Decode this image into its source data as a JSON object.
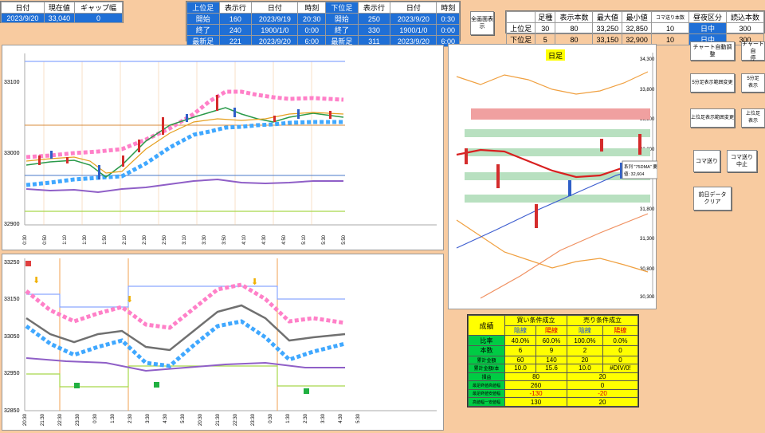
{
  "status": {
    "headers": [
      "日付",
      "現在値",
      "ギャップ幅"
    ],
    "values": [
      "2023/9/20",
      "33,040",
      "0"
    ]
  },
  "session": {
    "headers": [
      "上位足",
      "表示行",
      "日付",
      "時刻",
      "下位足",
      "表示行",
      "日付",
      "時刻"
    ],
    "rows": [
      [
        "開始",
        "160",
        "2023/9/19",
        "20:30",
        "開始",
        "250",
        "2023/9/20",
        "0:30"
      ],
      [
        "終了",
        "240",
        "1900/1/0",
        "0:00",
        "終了",
        "330",
        "1900/1/0",
        "0:00"
      ],
      [
        "最新足",
        "221",
        "2023/9/20",
        "6:00",
        "最新足",
        "311",
        "2023/9/20",
        "6:00"
      ]
    ]
  },
  "fullscreen_button": "全画面表示",
  "bars": {
    "headers": [
      "",
      "足種",
      "表示本数",
      "最大値",
      "最小値",
      "コマ送り本数",
      "昼夜区分",
      "読込本数"
    ],
    "rows": [
      [
        "上位足",
        "30",
        "80",
        "33,250",
        "32,850",
        "10",
        "日中",
        "300"
      ],
      [
        "下位足",
        "5",
        "80",
        "33,150",
        "32,900",
        "10",
        "日中",
        "300"
      ]
    ]
  },
  "buttons": {
    "chart_auto": "チャート自動調整",
    "chart_stop": "チャート自\n停",
    "hi5": "5分足表示範囲変更",
    "hi5b": "5分足\n表示",
    "upper_range": "上位足表示範囲変更",
    "upper_b": "上位足\n表示",
    "step": "コマ送り",
    "step_stop": "コマ送り\n中止",
    "clear": "前日データ\nクリア"
  },
  "chart_top": {
    "yticks": [
      "33100",
      "33000",
      "32900"
    ],
    "xticks": [
      "0:30",
      "0:50",
      "1:10",
      "1:30",
      "1:50",
      "2:10",
      "2:30",
      "2:50",
      "3:10",
      "3:30",
      "3:50",
      "4:10",
      "4:30",
      "4:50",
      "5:10",
      "5:30",
      "5:50"
    ]
  },
  "chart_bottom": {
    "yticks": [
      "33250",
      "33150",
      "33050",
      "32950",
      "32850"
    ],
    "xticks": [
      "20:30",
      "21:30",
      "22:30",
      "23:30",
      "0:30",
      "1:30",
      "2:30",
      "3:30",
      "4:30",
      "5:30",
      "20:30",
      "21:30",
      "22:30",
      "23:30",
      "0:30",
      "1:30",
      "2:30",
      "3:30",
      "4:30",
      "5:30"
    ]
  },
  "daily": {
    "title": "日足",
    "yticks": [
      "34,300",
      "33,800",
      "33,300",
      "32,800",
      "31,800",
      "31,300",
      "30,800",
      "30,300"
    ],
    "tooltip_l1": "系列 \"75DMA\" 要素 \"1\"",
    "tooltip_l2": "値: 32,604"
  },
  "stats": {
    "title": "成績",
    "buy": "買い条件成立",
    "sell": "売り条件成立",
    "neg": "陰線",
    "pos": "陽線",
    "rows": [
      {
        "label": "比率",
        "v": [
          "40.0%",
          "60.0%",
          "100.0%",
          "0.0%"
        ]
      },
      {
        "label": "本数",
        "v": [
          "6",
          "9",
          "2",
          "0"
        ]
      },
      {
        "label": "累計金額",
        "v": [
          "60",
          "140",
          "20",
          "0"
        ]
      },
      {
        "label": "累計金額/本",
        "v": [
          "10.0",
          "15.6",
          "10.0",
          "#DIV/0!"
        ]
      }
    ],
    "rows2": [
      {
        "label": "損益",
        "v": [
          "80",
          "20"
        ]
      },
      {
        "label": "最足終値高値幅",
        "v": [
          "260",
          "0"
        ]
      },
      {
        "label": "最足終値安値幅",
        "v": [
          "-130",
          "-20"
        ]
      },
      {
        "label": "高値幅ー安値幅",
        "v": [
          "130",
          "20"
        ]
      }
    ]
  },
  "colors": {
    "header_blue": "#1f6fd6",
    "bg": "#f8cba0",
    "green": "#00cc44",
    "yellow": "#ffff00"
  }
}
